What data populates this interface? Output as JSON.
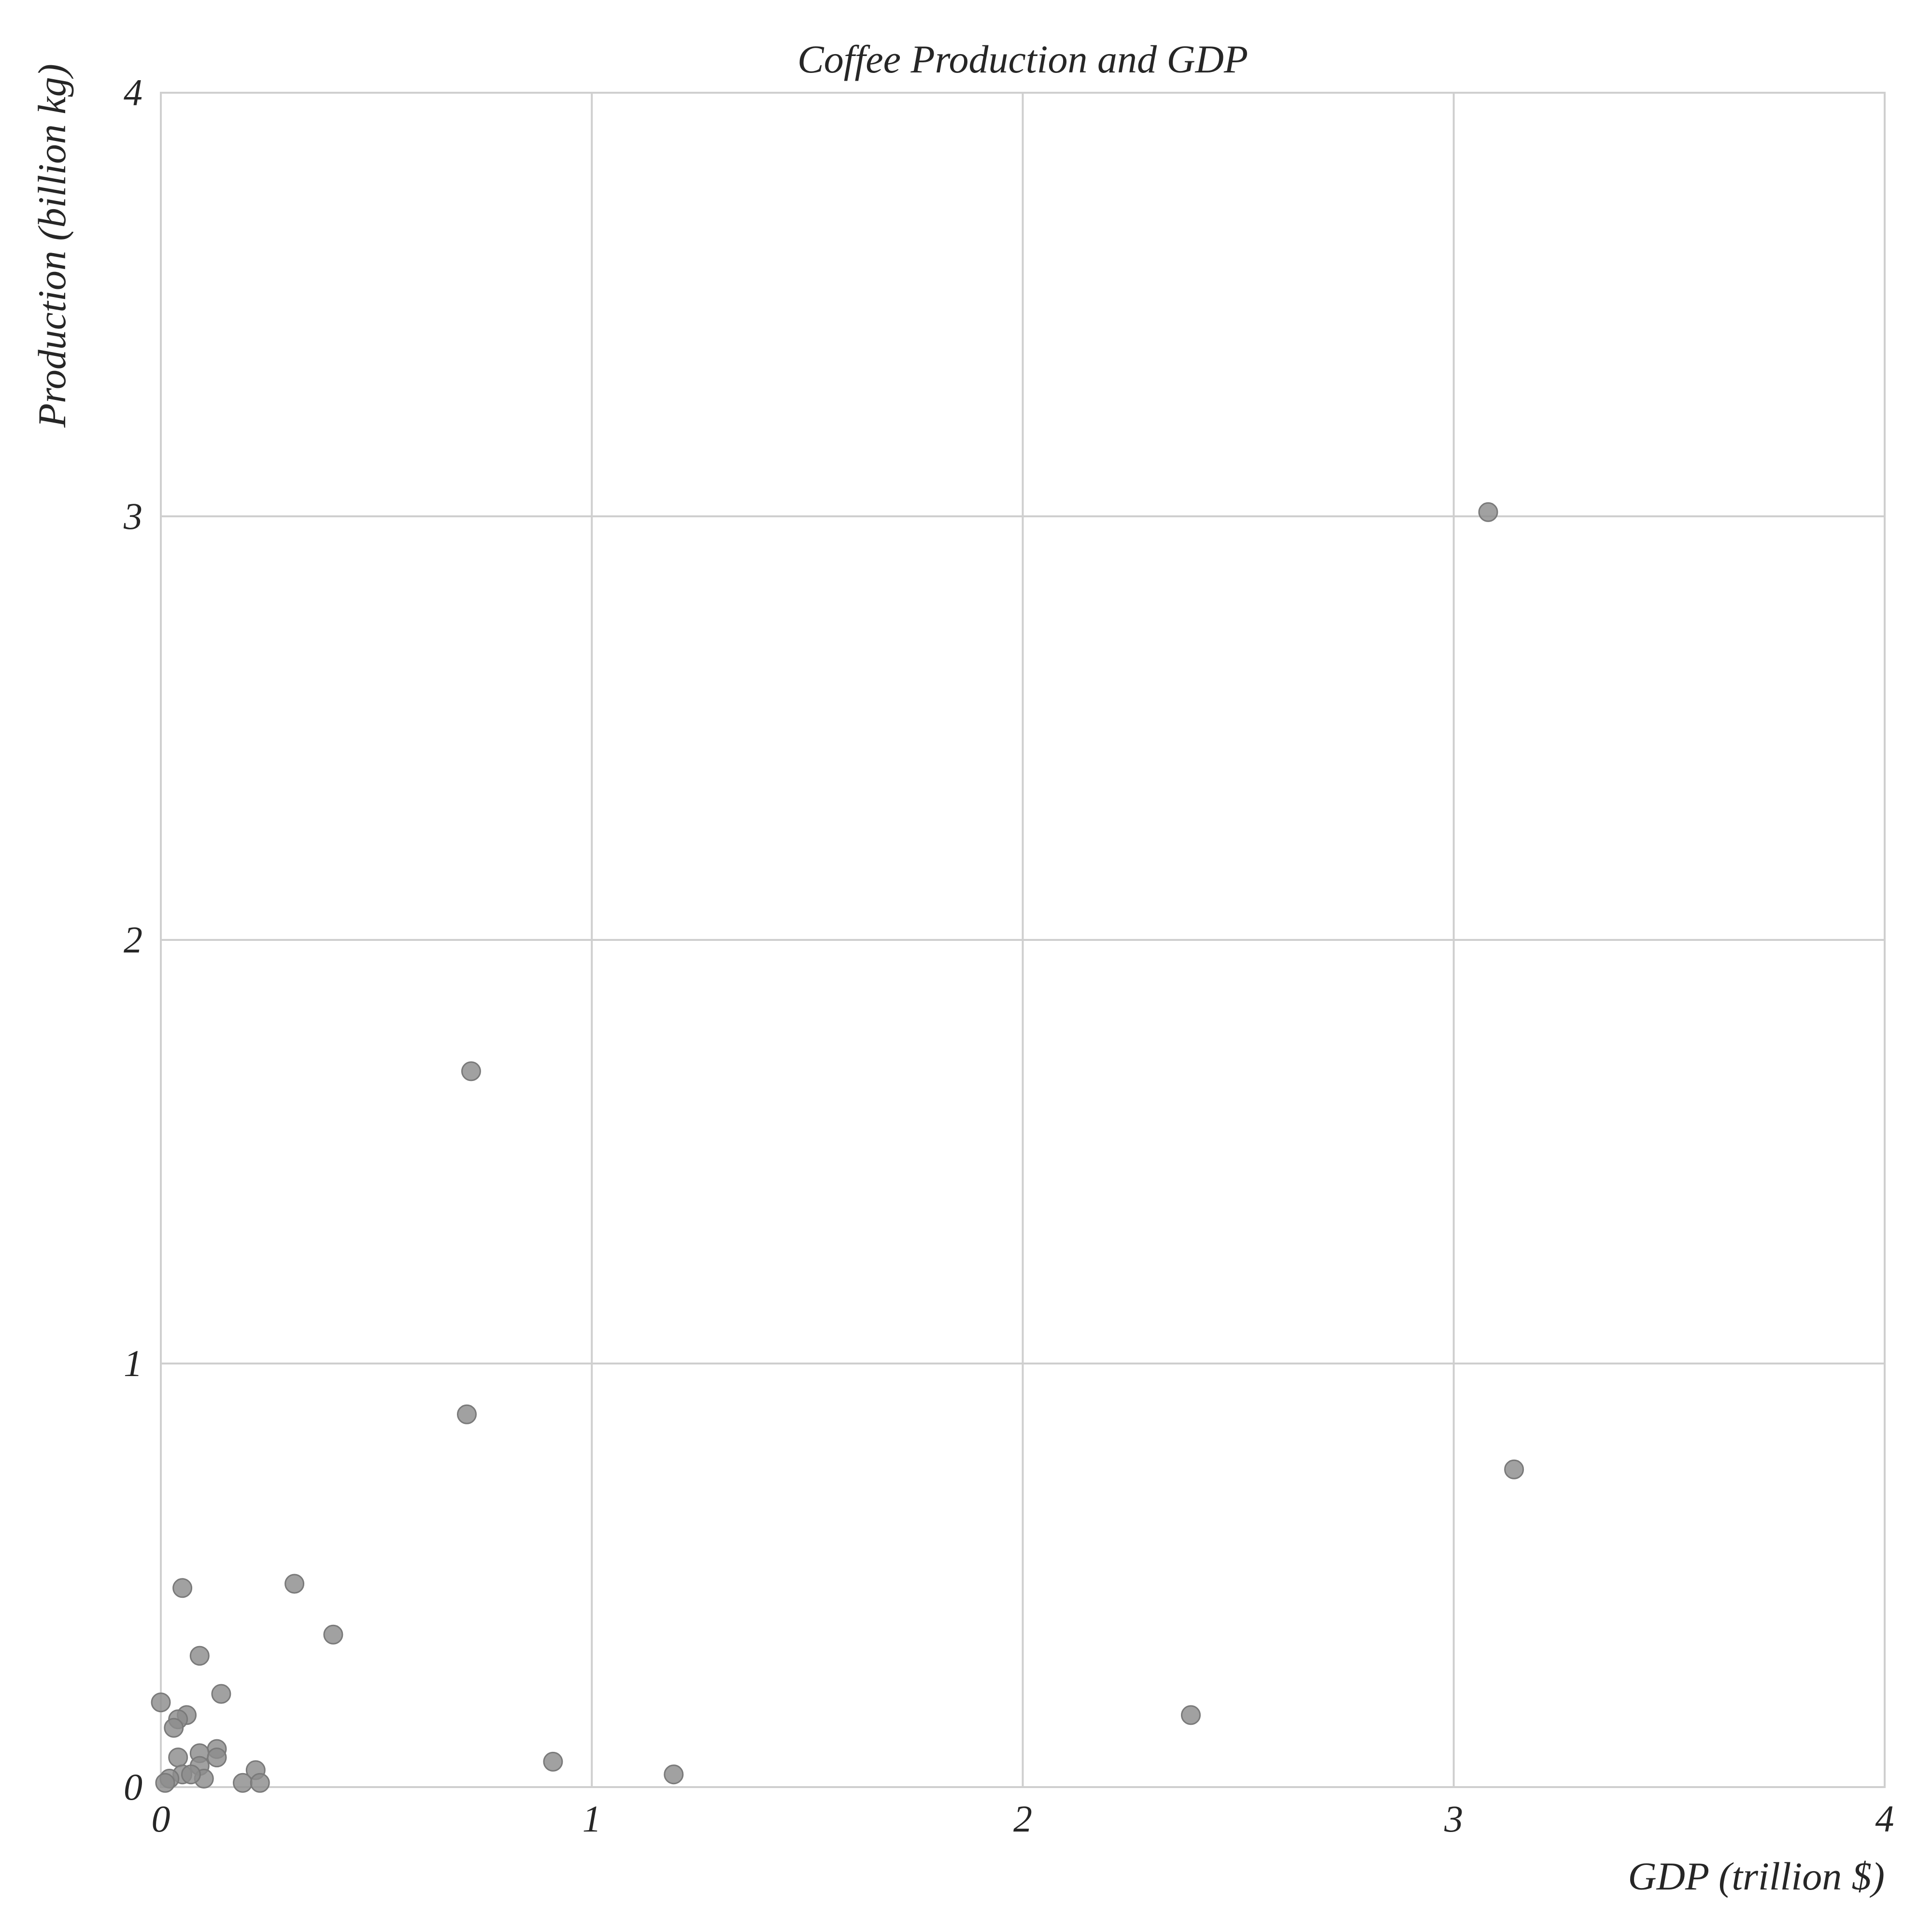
{
  "chart_data": {
    "type": "scatter",
    "title": "Coffee Production and GDP",
    "xlabel": "GDP (trillion $)",
    "ylabel": "Production (billion kg)",
    "xlim": [
      0,
      4
    ],
    "ylim": [
      0,
      4
    ],
    "xticks": [
      "0",
      "1",
      "2",
      "3",
      "4"
    ],
    "yticks": [
      "0",
      "1",
      "2",
      "3",
      "4"
    ],
    "grid": true,
    "legend": "none",
    "point_color": "#8c8c8c",
    "points": [
      {
        "x": 3.08,
        "y": 3.01
      },
      {
        "x": 0.72,
        "y": 1.69
      },
      {
        "x": 0.71,
        "y": 0.88
      },
      {
        "x": 3.14,
        "y": 0.75
      },
      {
        "x": 0.05,
        "y": 0.47
      },
      {
        "x": 0.31,
        "y": 0.48
      },
      {
        "x": 0.4,
        "y": 0.36
      },
      {
        "x": 0.09,
        "y": 0.31
      },
      {
        "x": 0.14,
        "y": 0.22
      },
      {
        "x": 0.0,
        "y": 0.2
      },
      {
        "x": 0.06,
        "y": 0.17
      },
      {
        "x": 0.04,
        "y": 0.16
      },
      {
        "x": 0.03,
        "y": 0.14
      },
      {
        "x": 2.39,
        "y": 0.17
      },
      {
        "x": 0.13,
        "y": 0.09
      },
      {
        "x": 0.09,
        "y": 0.08
      },
      {
        "x": 0.04,
        "y": 0.07
      },
      {
        "x": 0.13,
        "y": 0.07
      },
      {
        "x": 0.91,
        "y": 0.06
      },
      {
        "x": 0.09,
        "y": 0.05
      },
      {
        "x": 0.22,
        "y": 0.04
      },
      {
        "x": 0.05,
        "y": 0.03
      },
      {
        "x": 0.02,
        "y": 0.02
      },
      {
        "x": 0.1,
        "y": 0.02
      },
      {
        "x": 1.19,
        "y": 0.03
      },
      {
        "x": 0.07,
        "y": 0.03
      },
      {
        "x": 0.19,
        "y": 0.01
      },
      {
        "x": 0.23,
        "y": 0.01
      },
      {
        "x": 0.01,
        "y": 0.01
      }
    ]
  }
}
